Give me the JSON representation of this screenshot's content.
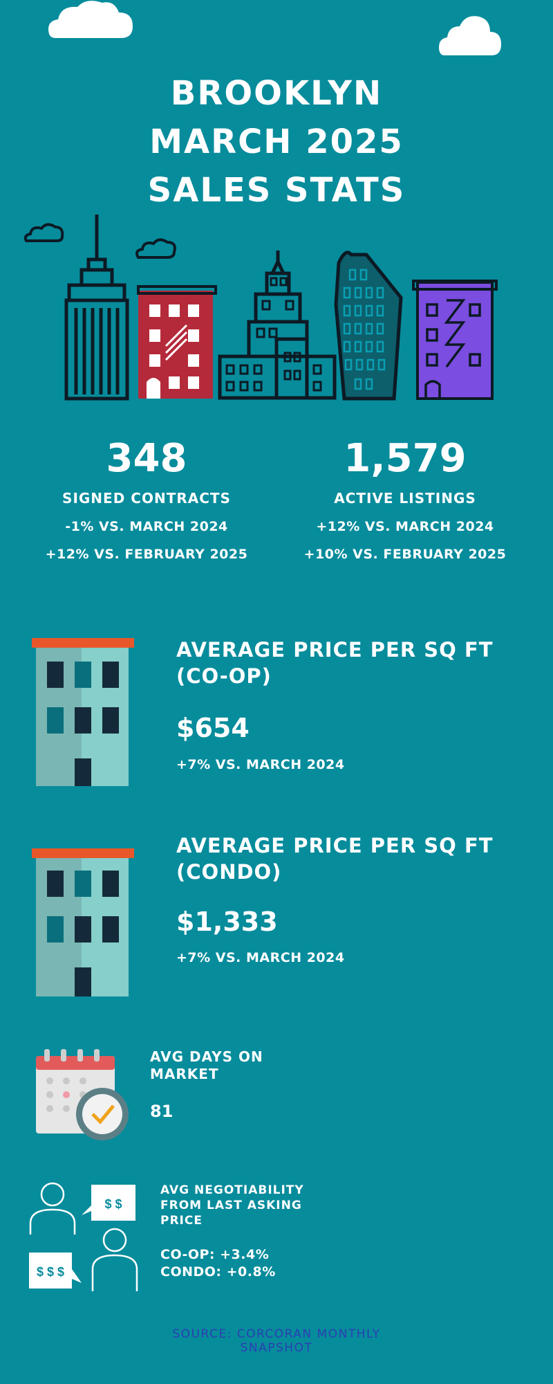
{
  "title": {
    "line1": "BROOKLYN",
    "line2": "MARCH 2025",
    "line3": "SALES STATS"
  },
  "stats": {
    "contracts": {
      "value": "348",
      "label": "SIGNED CONTRACTS",
      "yoy": "-1% VS. MARCH 2024",
      "mom": "+12% VS. FEBRUARY 2025"
    },
    "listings": {
      "value": "1,579",
      "label": "ACTIVE LISTINGS",
      "yoy": "+12% VS. MARCH 2024",
      "mom": "+10% VS. FEBRUARY 2025"
    }
  },
  "coop": {
    "title_line1": "AVERAGE PRICE PER SQ FT",
    "title_line2": "(CO-OP)",
    "value": "$654",
    "change": "+7% VS. MARCH 2024"
  },
  "condo": {
    "title_line1": "AVERAGE PRICE PER SQ FT",
    "title_line2": "(CONDO)",
    "value": "$1,333",
    "change": "+7% VS. MARCH 2024"
  },
  "days": {
    "title_line1": "AVG DAYS ON",
    "title_line2": "MARKET",
    "value": "81"
  },
  "negotiability": {
    "title_line1": "AVG NEGOTIABILITY",
    "title_line2": "FROM LAST ASKING",
    "title_line3": "PRICE",
    "coop": "CO-OP: +3.4%",
    "condo": "CONDO: +0.8%",
    "bubble_small": "$ $",
    "bubble_large": "$ $ $"
  },
  "source": {
    "line1": "SOURCE: CORCORAN MONTHLY",
    "line2": "SNAPSHOT"
  },
  "colors": {
    "background": "#078c9c",
    "red_building": "#b52a3a",
    "purple_building": "#7b4de0",
    "building_roof": "#e8572a",
    "source_text": "#2a3fb3"
  },
  "icons": [
    "cloud-icon",
    "empire-state-icon",
    "brick-building-icon",
    "tower-building-icon",
    "flatiron-building-icon",
    "purple-building-icon",
    "apartment-icon",
    "calendar-clock-icon",
    "people-chat-icon"
  ]
}
